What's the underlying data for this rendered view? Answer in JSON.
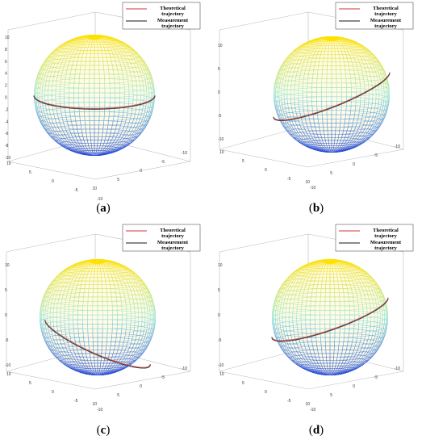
{
  "chart_data": [
    {
      "panel": "a",
      "type": "surface3d",
      "caption": "a",
      "view": "front",
      "z_ticks": [
        "10",
        "8",
        "6",
        "4",
        "2",
        "0",
        "-2",
        "-4",
        "-6",
        "-8",
        "-10"
      ],
      "x_ticks": [
        "10",
        "5",
        "0",
        "-5",
        "-10"
      ],
      "y_ticks": [
        "-10",
        "-5",
        "0",
        "5",
        "10"
      ],
      "zlim": [
        -10,
        10
      ],
      "xlim": [
        -10,
        10
      ],
      "ylim": [
        -10,
        10
      ],
      "legend": [
        "Theoretical trajectory",
        "Measurement trajectory"
      ],
      "legend_position": "top-right",
      "series": [
        {
          "name": "Theoretical trajectory",
          "color": "#e05a5a",
          "latitude_deg": 0,
          "tilt_deg": 0
        },
        {
          "name": "Measurement trajectory",
          "color": "#444444",
          "latitude_deg": 0,
          "tilt_deg": 0
        }
      ]
    },
    {
      "panel": "b",
      "type": "surface3d",
      "caption": "b",
      "view": "oblique",
      "z_ticks": [
        "10",
        "5",
        "0",
        "-5",
        "-10"
      ],
      "x_ticks": [
        "10",
        "5",
        "0",
        "-5",
        "-10"
      ],
      "y_ticks": [
        "-10",
        "-5",
        "0",
        "5",
        "10"
      ],
      "zlim": [
        -10,
        10
      ],
      "xlim": [
        -10,
        10
      ],
      "ylim": [
        -10,
        10
      ],
      "legend": [
        "Theoretical trajectory",
        "Measurement trajectory"
      ],
      "legend_position": "top-right",
      "series": [
        {
          "name": "Theoretical trajectory",
          "color": "#e05a5a",
          "latitude_deg": 0,
          "tilt_deg": 25
        },
        {
          "name": "Measurement trajectory",
          "color": "#444444",
          "latitude_deg": 0,
          "tilt_deg": 25
        }
      ]
    },
    {
      "panel": "c",
      "type": "surface3d",
      "caption": "c",
      "view": "oblique",
      "z_ticks": [
        "10",
        "5",
        "0",
        "-5",
        "-10"
      ],
      "x_ticks": [
        "10",
        "5",
        "0",
        "-5",
        "-10"
      ],
      "y_ticks": [
        "-10",
        "-5",
        "0",
        "5",
        "10"
      ],
      "zlim": [
        -10,
        10
      ],
      "xlim": [
        -10,
        10
      ],
      "ylim": [
        -10,
        10
      ],
      "legend": [
        "Theoretical trajectory",
        "Measurement trajectory"
      ],
      "legend_position": "top-right",
      "series": [
        {
          "name": "Theoretical trajectory",
          "color": "#e05a5a",
          "latitude_deg": -25,
          "tilt_deg": -28
        },
        {
          "name": "Measurement trajectory",
          "color": "#444444",
          "latitude_deg": -25,
          "tilt_deg": -28
        }
      ]
    },
    {
      "panel": "d",
      "type": "surface3d",
      "caption": "d",
      "view": "oblique",
      "z_ticks": [
        "10",
        "5",
        "0",
        "-5",
        "-10"
      ],
      "x_ticks": [
        "10",
        "5",
        "0",
        "-5",
        "-10"
      ],
      "y_ticks": [
        "-10",
        "-5",
        "0",
        "5",
        "10"
      ],
      "zlim": [
        -10,
        10
      ],
      "xlim": [
        -10,
        10
      ],
      "ylim": [
        -10,
        10
      ],
      "legend": [
        "Theoretical trajectory",
        "Measurement trajectory"
      ],
      "legend_position": "top-right",
      "series": [
        {
          "name": "Theoretical trajectory",
          "color": "#e05a5a",
          "latitude_deg": 0,
          "tilt_deg": 22
        },
        {
          "name": "Measurement trajectory",
          "color": "#444444",
          "latitude_deg": 0,
          "tilt_deg": 22
        }
      ]
    }
  ],
  "colors": {
    "sphere_top": "#ffe100",
    "sphere_mid": "#8fe6e0",
    "sphere_bottom": "#2a4bd7",
    "axes": "#bbbbbb"
  }
}
